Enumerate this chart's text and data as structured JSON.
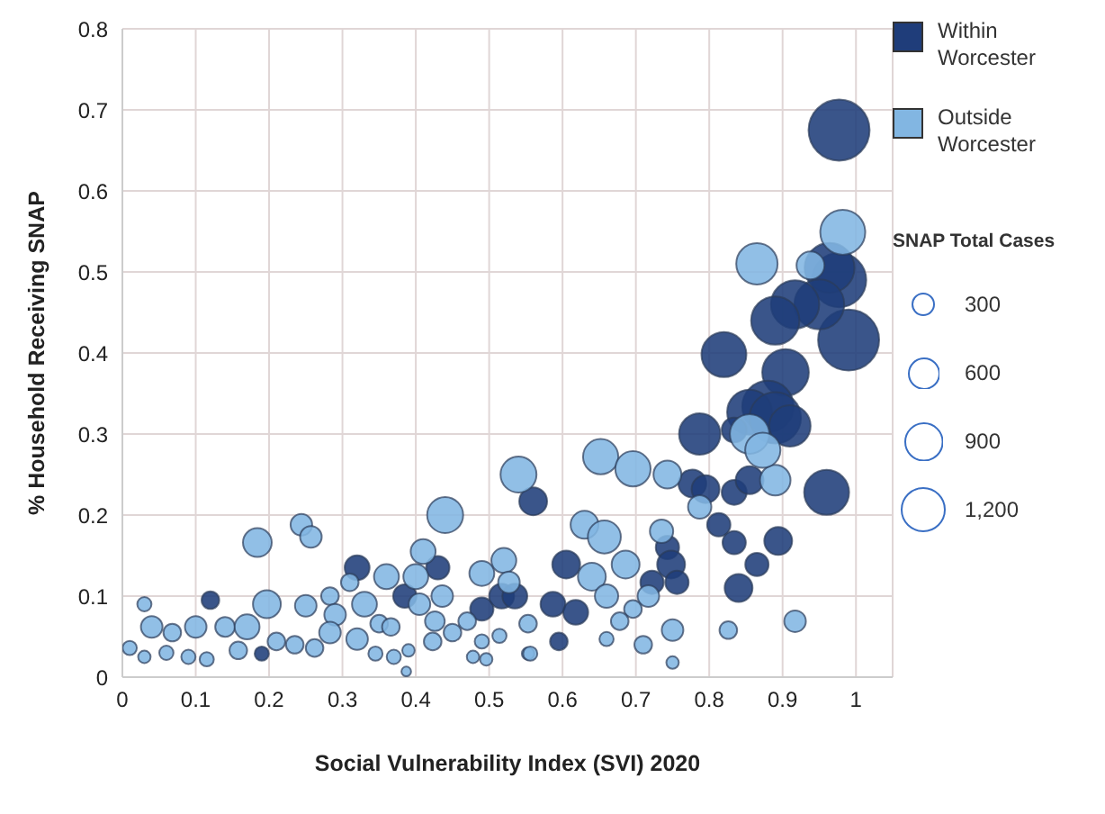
{
  "chart_data": {
    "type": "bubble",
    "xlabel": "Social Vulnerability Index (SVI) 2020",
    "ylabel": "% Household Receiving SNAP",
    "legend_title": "SNAP Total Cases",
    "xlim": [
      0,
      1.05
    ],
    "xticks": [
      0,
      0.1,
      0.2,
      0.3,
      0.4,
      0.5,
      0.6,
      0.7,
      0.8,
      0.9,
      1
    ],
    "ylim": [
      0,
      0.8
    ],
    "yticks": [
      0,
      0.1,
      0.2,
      0.3,
      0.4,
      0.5,
      0.6,
      0.7,
      0.8
    ],
    "grid": true,
    "legend": "right",
    "size_legend": [
      300,
      600,
      900,
      {
        "value": 1200,
        "label": "1,200"
      }
    ],
    "series": [
      {
        "name": "Within\nWorcester",
        "color": "#1f3d7a",
        "x": [
          0.12,
          0.19,
          0.32,
          0.43,
          0.385,
          0.49,
          0.517,
          0.535,
          0.56,
          0.977,
          0.99,
          0.977,
          0.964,
          0.95,
          0.917,
          0.89,
          0.82,
          0.904,
          0.88,
          0.855,
          0.89,
          0.91,
          0.787,
          0.834,
          0.96,
          0.777,
          0.795,
          0.834,
          0.855,
          0.813,
          0.894,
          0.834,
          0.865,
          0.84,
          0.743,
          0.748,
          0.756,
          0.722,
          0.605,
          0.587,
          0.618,
          0.595
        ],
        "values": [
          0.095,
          0.029,
          0.135,
          0.135,
          0.1,
          0.084,
          0.1,
          0.1,
          0.217,
          0.675,
          0.416,
          0.49,
          0.505,
          0.46,
          0.46,
          0.44,
          0.398,
          0.376,
          0.334,
          0.327,
          0.32,
          0.31,
          0.3,
          0.305,
          0.228,
          0.239,
          0.232,
          0.228,
          0.243,
          0.188,
          0.168,
          0.166,
          0.139,
          0.11,
          0.16,
          0.139,
          0.117,
          0.117,
          0.139,
          0.09,
          0.08,
          0.044
        ],
        "sizes": [
          200,
          130,
          400,
          350,
          350,
          350,
          400,
          400,
          500,
          2400,
          2400,
          1900,
          1600,
          1600,
          1500,
          1500,
          1300,
          1400,
          1700,
          1300,
          1700,
          1100,
          1100,
          400,
          1300,
          500,
          500,
          400,
          500,
          350,
          500,
          350,
          350,
          500,
          350,
          500,
          350,
          350,
          500,
          400,
          400,
          200
        ]
      },
      {
        "name": "Outside\nWorcester",
        "color": "#82b6e2",
        "x": [
          0.184,
          0.244,
          0.257,
          0.44,
          0.41,
          0.54,
          0.03,
          0.04,
          0.068,
          0.1,
          0.14,
          0.17,
          0.197,
          0.01,
          0.03,
          0.06,
          0.09,
          0.115,
          0.158,
          0.21,
          0.235,
          0.262,
          0.25,
          0.283,
          0.29,
          0.283,
          0.32,
          0.33,
          0.31,
          0.36,
          0.35,
          0.366,
          0.345,
          0.37,
          0.4,
          0.405,
          0.436,
          0.426,
          0.45,
          0.423,
          0.39,
          0.387,
          0.49,
          0.52,
          0.527,
          0.47,
          0.49,
          0.478,
          0.496,
          0.514,
          0.553,
          0.553,
          0.982,
          0.865,
          0.938,
          0.652,
          0.696,
          0.743,
          0.89,
          0.855,
          0.873,
          0.63,
          0.657,
          0.686,
          0.64,
          0.66,
          0.735,
          0.717,
          0.696,
          0.678,
          0.66,
          0.75,
          0.71,
          0.75,
          0.826,
          0.917,
          0.556,
          0.787
        ],
        "values": [
          0.166,
          0.188,
          0.173,
          0.2,
          0.155,
          0.25,
          0.09,
          0.062,
          0.055,
          0.062,
          0.062,
          0.062,
          0.09,
          0.036,
          0.025,
          0.03,
          0.025,
          0.022,
          0.033,
          0.044,
          0.04,
          0.036,
          0.088,
          0.1,
          0.077,
          0.055,
          0.047,
          0.09,
          0.117,
          0.124,
          0.066,
          0.062,
          0.029,
          0.025,
          0.124,
          0.09,
          0.1,
          0.069,
          0.055,
          0.044,
          0.033,
          0.007,
          0.128,
          0.144,
          0.117,
          0.069,
          0.044,
          0.025,
          0.022,
          0.051,
          0.066,
          0.029,
          0.549,
          0.51,
          0.508,
          0.272,
          0.257,
          0.25,
          0.243,
          0.3,
          0.28,
          0.188,
          0.173,
          0.139,
          0.124,
          0.1,
          0.18,
          0.1,
          0.084,
          0.069,
          0.047,
          0.058,
          0.04,
          0.018,
          0.058,
          0.069,
          0.029,
          0.21
        ],
        "sizes": [
          533,
          300,
          300,
          833,
          400,
          833,
          130,
          300,
          200,
          300,
          250,
          400,
          500,
          130,
          100,
          130,
          130,
          130,
          200,
          200,
          200,
          200,
          300,
          200,
          300,
          300,
          300,
          400,
          200,
          400,
          200,
          200,
          130,
          130,
          400,
          300,
          300,
          250,
          200,
          200,
          100,
          60,
          400,
          400,
          300,
          200,
          130,
          100,
          100,
          130,
          200,
          100,
          1300,
          1100,
          500,
          800,
          800,
          500,
          600,
          1000,
          800,
          500,
          700,
          500,
          500,
          350,
          350,
          300,
          200,
          200,
          130,
          300,
          200,
          100,
          200,
          300,
          130,
          350
        ]
      }
    ]
  }
}
